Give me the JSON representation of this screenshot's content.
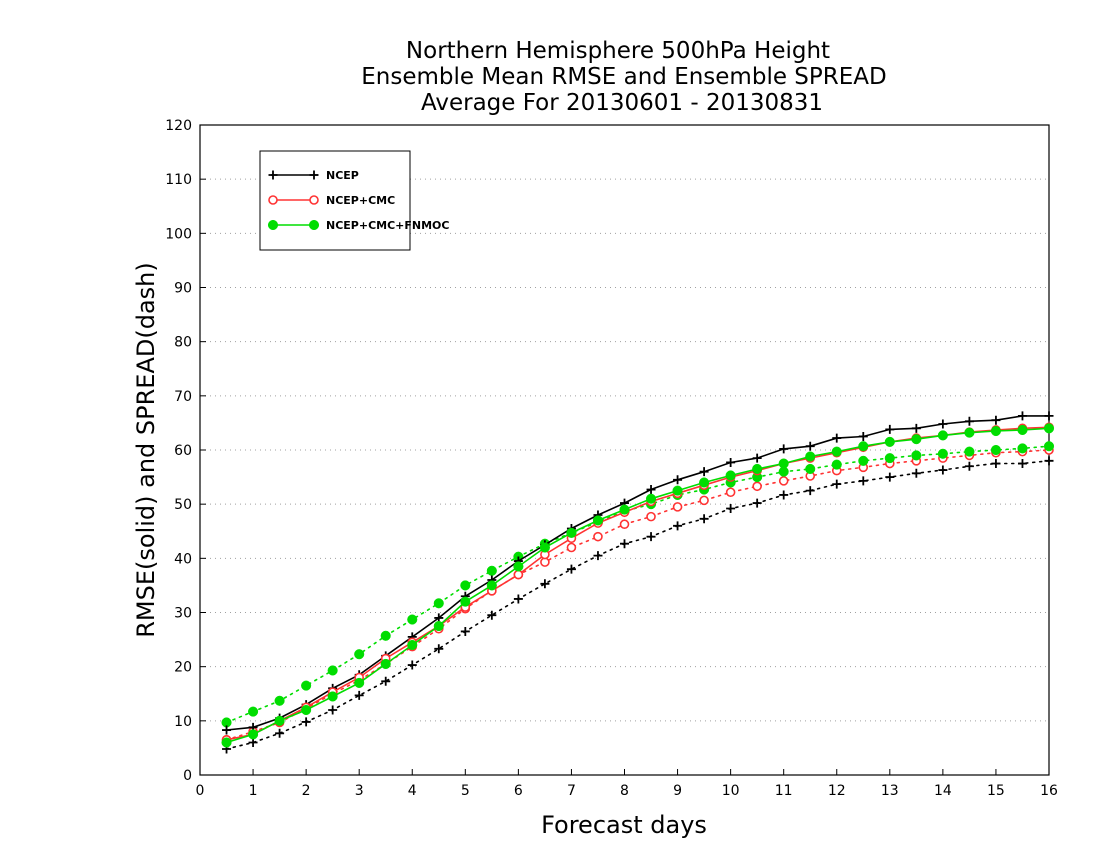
{
  "chart_data": {
    "type": "line",
    "title": [
      "Northern Hemisphere 500hPa Height",
      "Ensemble Mean RMSE and Ensemble SPREAD",
      "Average For 20130601 - 20130831"
    ],
    "xlabel": "Forecast days",
    "ylabel": "RMSE(solid) and SPREAD(dash)",
    "xlim": [
      0,
      16
    ],
    "ylim": [
      0,
      120
    ],
    "xticks": [
      0,
      1,
      2,
      3,
      4,
      5,
      6,
      7,
      8,
      9,
      10,
      11,
      12,
      13,
      14,
      15,
      16
    ],
    "yticks": [
      0,
      10,
      20,
      30,
      40,
      50,
      60,
      70,
      80,
      90,
      100,
      110,
      120
    ],
    "grid": "horizontal dotted",
    "legend_position": "top-left",
    "x": [
      0.5,
      1,
      1.5,
      2,
      2.5,
      3,
      3.5,
      4,
      4.5,
      5,
      5.5,
      6,
      6.5,
      7,
      7.5,
      8,
      8.5,
      9,
      9.5,
      10,
      10.5,
      11,
      11.5,
      12,
      12.5,
      13,
      13.5,
      14,
      14.5,
      15,
      15.5,
      16
    ],
    "series": [
      {
        "name": "NCEP",
        "color": "#000000",
        "marker": "plus",
        "rmse": [
          8.3,
          8.8,
          10.5,
          13.0,
          16.0,
          18.5,
          22.0,
          25.5,
          29.0,
          33.0,
          36.0,
          39.5,
          42.5,
          45.5,
          48.0,
          50.2,
          52.7,
          54.5,
          56.0,
          57.7,
          58.5,
          60.2,
          60.7,
          62.2,
          62.5,
          63.8,
          64.0,
          64.8,
          65.3,
          65.5,
          66.3,
          66.3
        ],
        "spread": [
          4.8,
          6.0,
          7.7,
          9.8,
          12.0,
          14.7,
          17.3,
          20.3,
          23.3,
          26.5,
          29.5,
          32.5,
          35.3,
          38.0,
          40.5,
          42.7,
          44.0,
          46.0,
          47.3,
          49.2,
          50.2,
          51.7,
          52.5,
          53.7,
          54.3,
          55.0,
          55.7,
          56.3,
          57.0,
          57.5,
          57.5,
          58.0
        ]
      },
      {
        "name": "NCEP+CMC",
        "color": "#ff3333",
        "marker": "circle-open",
        "rmse": [
          6.5,
          7.5,
          10.0,
          12.5,
          15.3,
          18.0,
          21.5,
          24.5,
          27.5,
          31.0,
          34.0,
          37.0,
          40.7,
          43.7,
          46.5,
          48.5,
          50.5,
          52.0,
          53.5,
          55.0,
          56.2,
          57.5,
          58.5,
          59.5,
          60.5,
          61.5,
          62.2,
          62.7,
          63.3,
          63.7,
          64.0,
          64.2
        ],
        "spread": [
          6.5,
          8.0,
          9.7,
          12.3,
          15.0,
          17.5,
          20.5,
          23.7,
          27.0,
          30.7,
          34.0,
          37.0,
          39.3,
          42.0,
          44.0,
          46.3,
          47.7,
          49.5,
          50.7,
          52.2,
          53.3,
          54.3,
          55.2,
          56.2,
          56.8,
          57.5,
          58.0,
          58.5,
          59.0,
          59.5,
          59.7,
          60.0
        ]
      },
      {
        "name": "NCEP+CMC+FNMOC",
        "color": "#00dd00",
        "marker": "circle-filled",
        "rmse": [
          6.0,
          7.5,
          10.0,
          12.0,
          14.5,
          17.0,
          20.5,
          24.0,
          27.5,
          32.0,
          35.0,
          38.5,
          42.0,
          44.7,
          47.0,
          49.0,
          51.0,
          52.5,
          54.0,
          55.3,
          56.5,
          57.5,
          58.8,
          59.7,
          60.7,
          61.5,
          62.0,
          62.7,
          63.2,
          63.5,
          63.7,
          64.0
        ],
        "spread": [
          9.7,
          11.7,
          13.7,
          16.5,
          19.3,
          22.3,
          25.7,
          28.7,
          31.7,
          35.0,
          37.7,
          40.3,
          42.7,
          44.7,
          46.7,
          48.7,
          50.0,
          51.7,
          52.7,
          54.0,
          55.0,
          56.0,
          56.5,
          57.3,
          58.0,
          58.5,
          59.0,
          59.3,
          59.7,
          60.0,
          60.3,
          60.7
        ]
      }
    ]
  }
}
